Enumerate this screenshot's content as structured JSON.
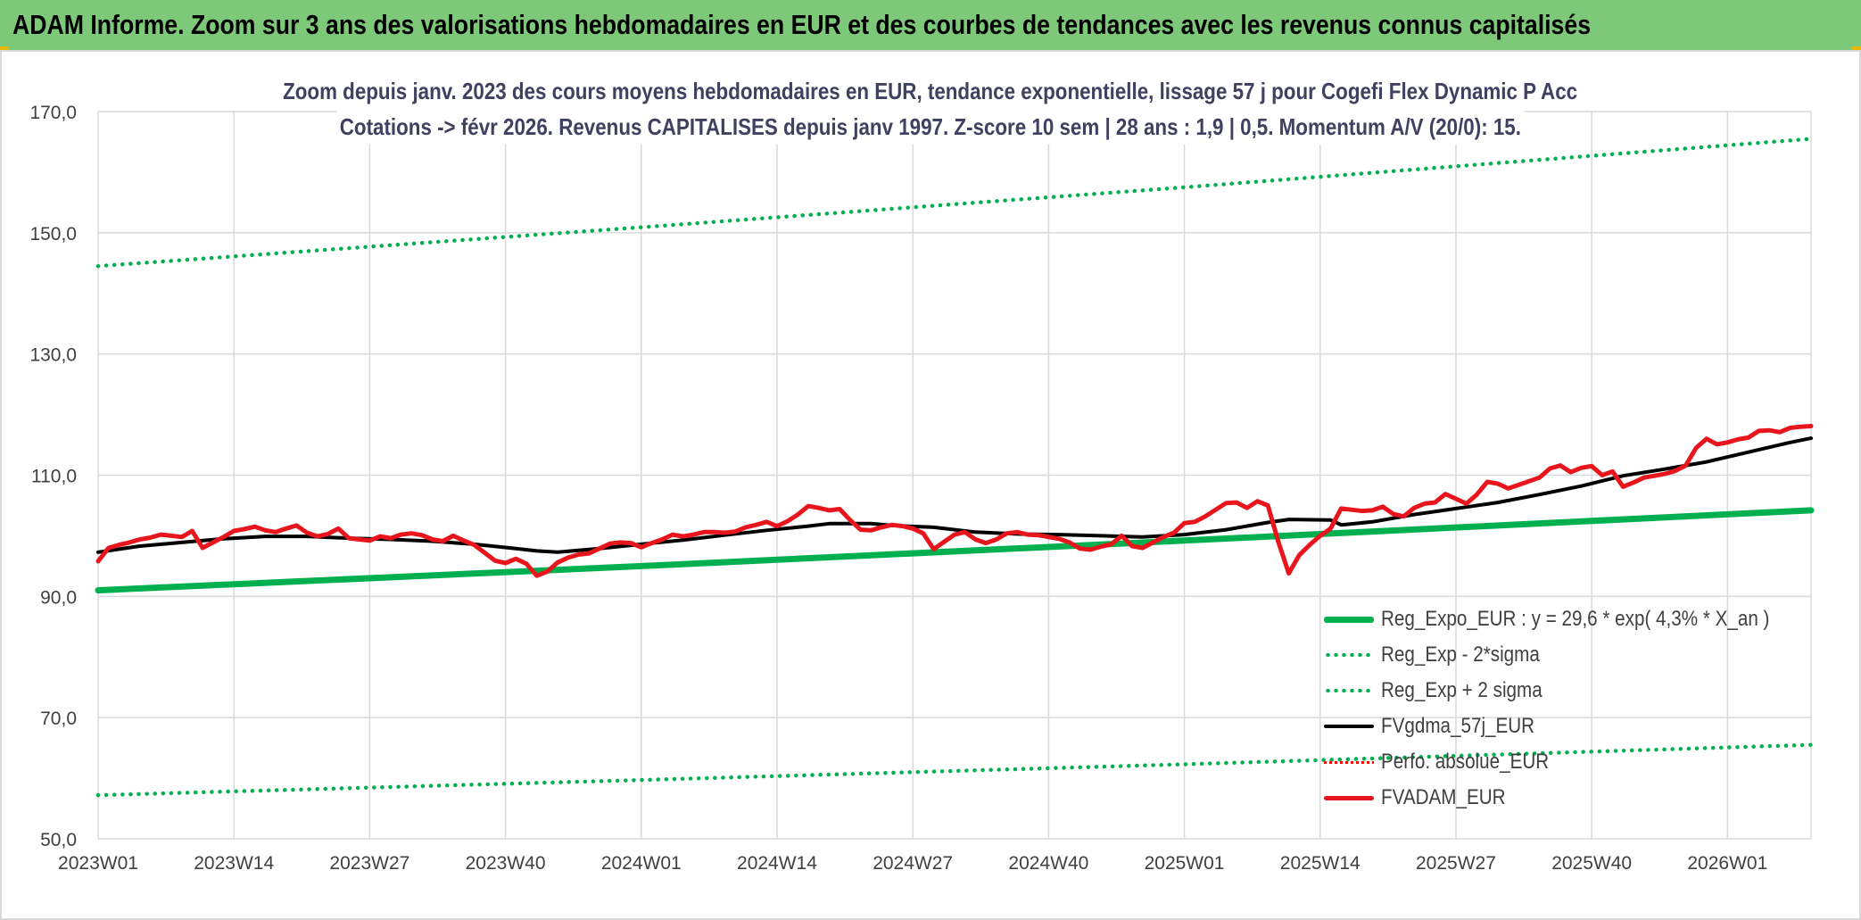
{
  "banner": {
    "title": "ADAM Informe. Zoom sur 3 ans des valorisations hebdomadaires en EUR et des courbes de tendances avec les revenus connus capitalisés"
  },
  "colors": {
    "banner_bg": "#7ec87a",
    "reg_expo": "#00b050",
    "bands": "#00b050",
    "gdma": "#000000",
    "perf_abs": "#ff0000",
    "adam": "#e8161c",
    "grid": "#d9d9d9"
  },
  "chart_data": {
    "type": "line",
    "title_line1": "Zoom depuis janv. 2023 des cours moyens hebdomadaires en EUR, tendance exponentielle, lissage 57 j pour Cogefi Flex Dynamic P Acc",
    "title_line2": "Cotations -> févr 2026. Revenus CAPITALISES depuis janv 1997. Z-score 10 sem | 28 ans : 1,9 | 0,5. Momentum A/V (20/0): 15.",
    "xlabel": "",
    "ylabel": "",
    "ylim": [
      50,
      170
    ],
    "y_ticks": [
      "50,0",
      "70,0",
      "90,0",
      "110,0",
      "130,0",
      "150,0",
      "170,0"
    ],
    "x_tick_labels": [
      "2023W01",
      "2023W14",
      "2023W27",
      "2023W40",
      "2024W01",
      "2024W14",
      "2024W27",
      "2024W40",
      "2025W01",
      "2025W14",
      "2025W27",
      "2025W40",
      "2026W01"
    ],
    "x_tick_weeks": [
      0,
      13,
      26,
      39,
      52,
      65,
      78,
      91,
      104,
      117,
      130,
      143,
      156
    ],
    "x_range_weeks": [
      0,
      164
    ],
    "legend_position": "bottom-right",
    "series": [
      {
        "name": "Reg_Expo_EUR : y = 29,6 * exp( 4,3% *  X_an )",
        "style": "solid-thick",
        "points": [
          [
            0,
            91.0
          ],
          [
            52,
            95.0
          ],
          [
            104,
            99.2
          ],
          [
            164,
            104.2
          ]
        ]
      },
      {
        "name": "Reg_Exp - 2*sigma",
        "style": "dotted",
        "points": [
          [
            0,
            57.2
          ],
          [
            52,
            59.7
          ],
          [
            104,
            62.3
          ],
          [
            164,
            65.5
          ]
        ]
      },
      {
        "name": "Reg_Exp + 2 sigma",
        "style": "dotted",
        "points": [
          [
            0,
            144.5
          ],
          [
            52,
            150.9
          ],
          [
            104,
            157.5
          ],
          [
            164,
            165.5
          ]
        ]
      },
      {
        "name": "FVgdma_57j_EUR",
        "style": "solid",
        "points": [
          [
            0,
            97.3
          ],
          [
            4,
            98.3
          ],
          [
            8,
            98.9
          ],
          [
            12,
            99.5
          ],
          [
            16,
            99.9
          ],
          [
            20,
            99.9
          ],
          [
            24,
            99.6
          ],
          [
            28,
            99.4
          ],
          [
            32,
            99.1
          ],
          [
            36,
            98.6
          ],
          [
            40,
            97.9
          ],
          [
            42,
            97.5
          ],
          [
            44,
            97.3
          ],
          [
            48,
            97.9
          ],
          [
            52,
            98.6
          ],
          [
            56,
            99.3
          ],
          [
            60,
            100.1
          ],
          [
            64,
            100.9
          ],
          [
            68,
            101.6
          ],
          [
            70,
            102.0
          ],
          [
            74,
            102.0
          ],
          [
            76,
            101.7
          ],
          [
            80,
            101.4
          ],
          [
            84,
            100.6
          ],
          [
            88,
            100.3
          ],
          [
            92,
            100.2
          ],
          [
            96,
            100.0
          ],
          [
            100,
            99.8
          ],
          [
            104,
            100.2
          ],
          [
            108,
            101.0
          ],
          [
            112,
            102.2
          ],
          [
            114,
            102.7
          ],
          [
            118,
            102.6
          ],
          [
            119,
            101.8
          ],
          [
            122,
            102.3
          ],
          [
            126,
            103.5
          ],
          [
            130,
            104.5
          ],
          [
            134,
            105.5
          ],
          [
            138,
            106.8
          ],
          [
            142,
            108.2
          ],
          [
            146,
            109.9
          ],
          [
            150,
            111.0
          ],
          [
            154,
            112.2
          ],
          [
            158,
            113.8
          ],
          [
            162,
            115.4
          ],
          [
            164,
            116.1
          ]
        ]
      },
      {
        "name": "Perfo. absolue_EUR",
        "style": "dotted-red",
        "points": []
      },
      {
        "name": "FVADAM_EUR",
        "style": "solid-thick",
        "points": [
          [
            0,
            95.8
          ],
          [
            1,
            98.0
          ],
          [
            2,
            98.5
          ],
          [
            3,
            98.9
          ],
          [
            4,
            99.4
          ],
          [
            5,
            99.7
          ],
          [
            6,
            100.2
          ],
          [
            7,
            100.0
          ],
          [
            8,
            99.8
          ],
          [
            9,
            100.8
          ],
          [
            10,
            98.0
          ],
          [
            11,
            98.9
          ],
          [
            12,
            99.8
          ],
          [
            13,
            100.8
          ],
          [
            14,
            101.1
          ],
          [
            15,
            101.5
          ],
          [
            16,
            100.9
          ],
          [
            17,
            100.6
          ],
          [
            18,
            101.2
          ],
          [
            19,
            101.7
          ],
          [
            20,
            100.5
          ],
          [
            21,
            99.9
          ],
          [
            22,
            100.3
          ],
          [
            23,
            101.2
          ],
          [
            24,
            99.6
          ],
          [
            25,
            99.4
          ],
          [
            26,
            99.2
          ],
          [
            27,
            99.9
          ],
          [
            28,
            99.6
          ],
          [
            29,
            100.2
          ],
          [
            30,
            100.4
          ],
          [
            31,
            100.1
          ],
          [
            32,
            99.4
          ],
          [
            33,
            99.1
          ],
          [
            34,
            100.0
          ],
          [
            35,
            99.2
          ],
          [
            36,
            98.5
          ],
          [
            37,
            97.2
          ],
          [
            38,
            95.9
          ],
          [
            39,
            95.5
          ],
          [
            40,
            96.2
          ],
          [
            41,
            95.4
          ],
          [
            42,
            93.4
          ],
          [
            43,
            94.1
          ],
          [
            44,
            95.6
          ],
          [
            45,
            96.4
          ],
          [
            46,
            96.9
          ],
          [
            47,
            97.1
          ],
          [
            48,
            97.9
          ],
          [
            49,
            98.7
          ],
          [
            50,
            98.9
          ],
          [
            51,
            98.8
          ],
          [
            52,
            98.1
          ],
          [
            53,
            98.8
          ],
          [
            54,
            99.4
          ],
          [
            55,
            100.2
          ],
          [
            56,
            99.9
          ],
          [
            57,
            100.2
          ],
          [
            58,
            100.6
          ],
          [
            59,
            100.6
          ],
          [
            60,
            100.5
          ],
          [
            61,
            100.7
          ],
          [
            62,
            101.4
          ],
          [
            63,
            101.8
          ],
          [
            64,
            102.3
          ],
          [
            65,
            101.6
          ],
          [
            66,
            102.4
          ],
          [
            67,
            103.5
          ],
          [
            68,
            104.9
          ],
          [
            69,
            104.6
          ],
          [
            70,
            104.2
          ],
          [
            71,
            104.4
          ],
          [
            72,
            102.6
          ],
          [
            73,
            101.0
          ],
          [
            74,
            100.9
          ],
          [
            75,
            101.4
          ],
          [
            76,
            101.8
          ],
          [
            77,
            101.6
          ],
          [
            78,
            101.2
          ],
          [
            79,
            100.4
          ],
          [
            80,
            97.8
          ],
          [
            81,
            99.0
          ],
          [
            82,
            100.2
          ],
          [
            83,
            100.6
          ],
          [
            84,
            99.4
          ],
          [
            85,
            98.8
          ],
          [
            86,
            99.4
          ],
          [
            87,
            100.4
          ],
          [
            88,
            100.6
          ],
          [
            89,
            100.2
          ],
          [
            90,
            100.1
          ],
          [
            91,
            99.8
          ],
          [
            92,
            99.5
          ],
          [
            93,
            98.9
          ],
          [
            94,
            97.9
          ],
          [
            95,
            97.7
          ],
          [
            96,
            98.2
          ],
          [
            97,
            98.6
          ],
          [
            98,
            100.0
          ],
          [
            99,
            98.3
          ],
          [
            100,
            98.0
          ],
          [
            101,
            98.9
          ],
          [
            102,
            99.8
          ],
          [
            103,
            100.5
          ],
          [
            104,
            102.1
          ],
          [
            105,
            102.3
          ],
          [
            106,
            103.2
          ],
          [
            107,
            104.3
          ],
          [
            108,
            105.4
          ],
          [
            109,
            105.5
          ],
          [
            110,
            104.6
          ],
          [
            111,
            105.7
          ],
          [
            112,
            105.0
          ],
          [
            113,
            99.0
          ],
          [
            114,
            93.8
          ],
          [
            115,
            96.8
          ],
          [
            116,
            98.5
          ],
          [
            117,
            100.0
          ],
          [
            118,
            101.2
          ],
          [
            119,
            104.5
          ],
          [
            120,
            104.3
          ],
          [
            121,
            104.1
          ],
          [
            122,
            104.2
          ],
          [
            123,
            104.8
          ],
          [
            124,
            103.6
          ],
          [
            125,
            103.2
          ],
          [
            126,
            104.6
          ],
          [
            127,
            105.3
          ],
          [
            128,
            105.5
          ],
          [
            129,
            106.9
          ],
          [
            130,
            106.1
          ],
          [
            131,
            105.3
          ],
          [
            132,
            106.8
          ],
          [
            133,
            108.9
          ],
          [
            134,
            108.6
          ],
          [
            135,
            107.8
          ],
          [
            136,
            108.4
          ],
          [
            137,
            109.0
          ],
          [
            138,
            109.6
          ],
          [
            139,
            111.1
          ],
          [
            140,
            111.6
          ],
          [
            141,
            110.5
          ],
          [
            142,
            111.2
          ],
          [
            143,
            111.5
          ],
          [
            144,
            110.0
          ],
          [
            145,
            110.6
          ],
          [
            146,
            108.1
          ],
          [
            147,
            108.8
          ],
          [
            148,
            109.6
          ],
          [
            149,
            109.9
          ],
          [
            150,
            110.2
          ],
          [
            151,
            110.7
          ],
          [
            152,
            111.6
          ],
          [
            153,
            114.5
          ],
          [
            154,
            116.0
          ],
          [
            155,
            115.1
          ],
          [
            156,
            115.4
          ],
          [
            157,
            115.9
          ],
          [
            158,
            116.2
          ],
          [
            159,
            117.3
          ],
          [
            160,
            117.4
          ],
          [
            161,
            117.1
          ],
          [
            162,
            117.8
          ],
          [
            163,
            118.0
          ],
          [
            164,
            118.1
          ]
        ]
      }
    ]
  }
}
